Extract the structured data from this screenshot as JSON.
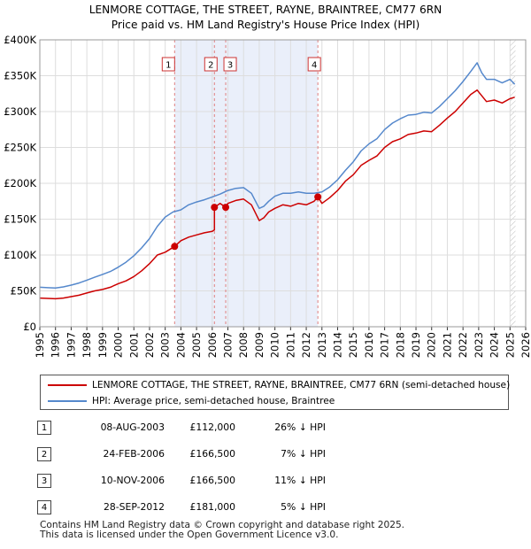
{
  "title_line1": "LENMORE COTTAGE, THE STREET, RAYNE, BRAINTREE, CM77 6RN",
  "title_line2": "Price paid vs. HM Land Registry's House Price Index (HPI)",
  "chart_data": {
    "type": "line",
    "title": "LENMORE COTTAGE, THE STREET, RAYNE, BRAINTREE, CM77 6RN",
    "subtitle": "Price paid vs. HM Land Registry's House Price Index (HPI)",
    "xlim": [
      1995,
      2026
    ],
    "ylim": [
      0,
      400000
    ],
    "x_ticks": [
      "1995",
      "1996",
      "1997",
      "1998",
      "1999",
      "2000",
      "2001",
      "2002",
      "2003",
      "2004",
      "2005",
      "2006",
      "2007",
      "2008",
      "2009",
      "2010",
      "2011",
      "2012",
      "2013",
      "2014",
      "2015",
      "2016",
      "2017",
      "2018",
      "2019",
      "2020",
      "2021",
      "2022",
      "2023",
      "2024",
      "2025",
      "2026"
    ],
    "y_ticks": [
      {
        "value": 0,
        "label": "£0"
      },
      {
        "value": 50000,
        "label": "£50K"
      },
      {
        "value": 100000,
        "label": "£100K"
      },
      {
        "value": 150000,
        "label": "£150K"
      },
      {
        "value": 200000,
        "label": "£200K"
      },
      {
        "value": 250000,
        "label": "£250K"
      },
      {
        "value": 300000,
        "label": "£300K"
      },
      {
        "value": 350000,
        "label": "£350K"
      },
      {
        "value": 400000,
        "label": "£400K"
      }
    ],
    "grid": true,
    "shaded_ranges": [
      [
        2003.6,
        2012.74
      ]
    ],
    "forecast_from": 2025.0,
    "series": [
      {
        "name": "LENMORE COTTAGE, THE STREET, RAYNE, BRAINTREE, CM77 6RN (semi-detached house)",
        "color": "#cc0000",
        "x": [
          1995.0,
          1995.5,
          1996.0,
          1996.5,
          1997.0,
          1997.5,
          1998.0,
          1998.5,
          1999.0,
          1999.5,
          2000.0,
          2000.5,
          2001.0,
          2001.5,
          2002.0,
          2002.5,
          2003.0,
          2003.6,
          2004.0,
          2004.5,
          2005.0,
          2005.5,
          2006.0,
          2006.14,
          2006.14,
          2006.5,
          2006.86,
          2007.0,
          2007.5,
          2008.0,
          2008.5,
          2009.0,
          2009.3,
          2009.6,
          2010.0,
          2010.5,
          2011.0,
          2011.5,
          2012.0,
          2012.5,
          2012.74,
          2013.0,
          2013.5,
          2014.0,
          2014.5,
          2015.0,
          2015.5,
          2016.0,
          2016.5,
          2017.0,
          2017.5,
          2018.0,
          2018.5,
          2019.0,
          2019.5,
          2020.0,
          2020.5,
          2021.0,
          2021.5,
          2022.0,
          2022.5,
          2022.9,
          2023.2,
          2023.5,
          2024.0,
          2024.5,
          2025.0,
          2025.3
        ],
        "y": [
          40000,
          39500,
          39000,
          40000,
          42000,
          44000,
          47000,
          50000,
          52000,
          55000,
          60000,
          64000,
          70000,
          78000,
          88000,
          100000,
          104000,
          112000,
          120000,
          125000,
          128000,
          131000,
          133000,
          135000,
          166500,
          172000,
          166500,
          172000,
          176000,
          178000,
          170000,
          148000,
          152000,
          160000,
          165000,
          170000,
          168000,
          172000,
          170000,
          175000,
          181000,
          172000,
          180000,
          190000,
          203000,
          212000,
          225000,
          232000,
          238000,
          250000,
          258000,
          262000,
          268000,
          270000,
          273000,
          272000,
          281000,
          291000,
          300000,
          312000,
          324000,
          330000,
          322000,
          314000,
          316000,
          312000,
          318000,
          320000
        ]
      },
      {
        "name": "HPI: Average price, semi-detached house, Braintree",
        "color": "#5588cc",
        "x": [
          1995.0,
          1995.5,
          1996.0,
          1996.5,
          1997.0,
          1997.5,
          1998.0,
          1998.5,
          1999.0,
          1999.5,
          2000.0,
          2000.5,
          2001.0,
          2001.5,
          2002.0,
          2002.5,
          2003.0,
          2003.5,
          2004.0,
          2004.5,
          2005.0,
          2005.5,
          2006.0,
          2006.5,
          2007.0,
          2007.5,
          2008.0,
          2008.5,
          2009.0,
          2009.3,
          2009.6,
          2010.0,
          2010.5,
          2011.0,
          2011.5,
          2012.0,
          2012.5,
          2013.0,
          2013.5,
          2014.0,
          2014.5,
          2015.0,
          2015.5,
          2016.0,
          2016.5,
          2017.0,
          2017.5,
          2018.0,
          2018.5,
          2019.0,
          2019.5,
          2020.0,
          2020.5,
          2021.0,
          2021.5,
          2022.0,
          2022.5,
          2022.9,
          2023.2,
          2023.5,
          2024.0,
          2024.5,
          2025.0,
          2025.3
        ],
        "y": [
          55000,
          54500,
          54000,
          55500,
          58000,
          61000,
          65000,
          69000,
          73000,
          77000,
          83000,
          90000,
          99000,
          110000,
          123000,
          140000,
          153000,
          160000,
          163000,
          170000,
          174000,
          177000,
          181000,
          185000,
          190000,
          193000,
          194000,
          186000,
          165000,
          168000,
          175000,
          182000,
          186000,
          186000,
          188000,
          186000,
          186000,
          188000,
          195000,
          205000,
          218000,
          230000,
          245000,
          255000,
          262000,
          275000,
          284000,
          290000,
          295000,
          296000,
          299000,
          298000,
          307000,
          318000,
          329000,
          342000,
          356000,
          368000,
          354000,
          345000,
          345000,
          340000,
          345000,
          338000
        ]
      }
    ],
    "sales": [
      {
        "label": "1",
        "x": 2003.6,
        "price": 112000
      },
      {
        "label": "2",
        "x": 2006.14,
        "price": 166500
      },
      {
        "label": "3",
        "x": 2006.86,
        "price": 166500
      },
      {
        "label": "4",
        "x": 2012.74,
        "price": 181000
      }
    ]
  },
  "legend": {
    "property": "LENMORE COTTAGE, THE STREET, RAYNE, BRAINTREE, CM77 6RN (semi-detached house)",
    "hpi": "HPI: Average price, semi-detached house, Braintree"
  },
  "sales_table": [
    {
      "num": "1",
      "date": "08-AUG-2003",
      "price": "£112,000",
      "hpi": "26% ↓ HPI"
    },
    {
      "num": "2",
      "date": "24-FEB-2006",
      "price": "£166,500",
      "hpi": "7% ↓ HPI"
    },
    {
      "num": "3",
      "date": "10-NOV-2006",
      "price": "£166,500",
      "hpi": "11% ↓ HPI"
    },
    {
      "num": "4",
      "date": "28-SEP-2012",
      "price": "£181,000",
      "hpi": "5% ↓ HPI"
    }
  ],
  "footer_line1": "Contains HM Land Registry data © Crown copyright and database right 2025.",
  "footer_line2": "This data is licensed under the Open Government Licence v3.0."
}
